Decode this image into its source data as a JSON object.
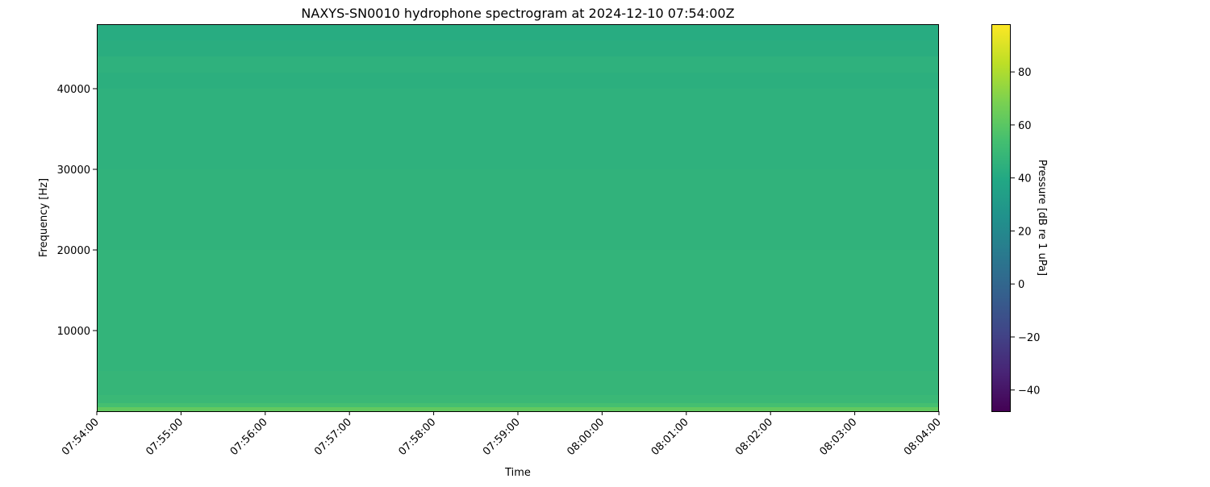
{
  "chart_data": {
    "type": "heatmap",
    "title": "NAXYS-SN0010 hydrophone spectrogram at 2024-12-10 07:54:00Z",
    "xlabel": "Time",
    "ylabel": "Frequency [Hz]",
    "colorbar_label": "Pressure [dB re 1 uPa]",
    "colormap": "viridis",
    "xlim": [
      "07:54:00",
      "08:04:00"
    ],
    "ylim": [
      0,
      48000
    ],
    "clim": [
      -48,
      98
    ],
    "x_ticks": [
      "07:54:00",
      "07:55:00",
      "07:56:00",
      "07:57:00",
      "07:58:00",
      "07:59:00",
      "08:00:00",
      "08:01:00",
      "08:02:00",
      "08:03:00",
      "08:04:00"
    ],
    "y_ticks": [
      10000,
      20000,
      30000,
      40000
    ],
    "y_tick_labels": [
      "10000",
      "20000",
      "30000",
      "40000"
    ],
    "colorbar_ticks": [
      -40,
      -20,
      0,
      20,
      40,
      60,
      80
    ],
    "colorbar_tick_labels": [
      "−40",
      "−20",
      "0",
      "20",
      "40",
      "60",
      "80"
    ],
    "grid": false,
    "frequency_bands_hz": [
      0,
      500,
      1000,
      2000,
      5000,
      10000,
      20000,
      30000,
      40000,
      42000,
      44000,
      46000,
      48000
    ],
    "band_levels_db": [
      62,
      54,
      50,
      48,
      47,
      47,
      46,
      45,
      44,
      45,
      43,
      42
    ]
  }
}
